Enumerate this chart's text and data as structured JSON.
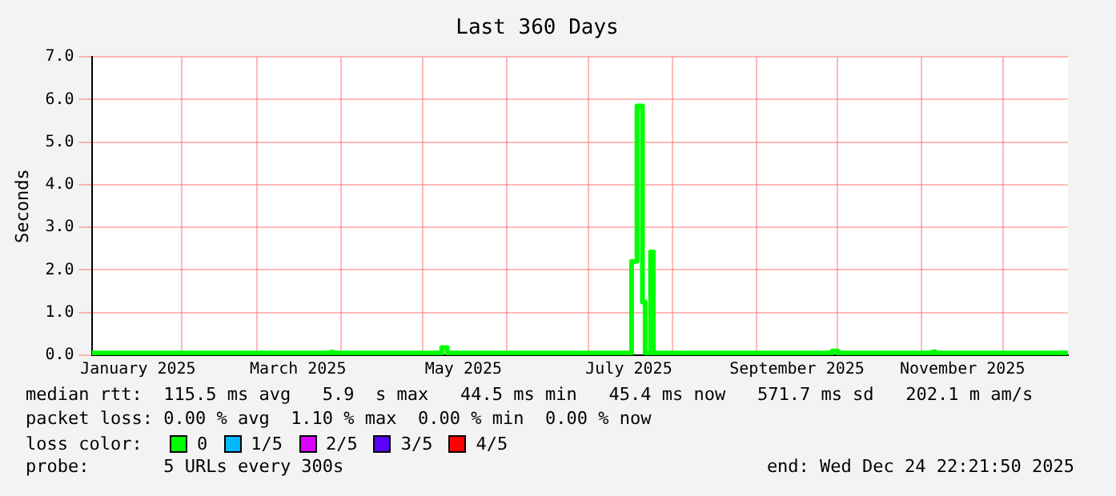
{
  "chart_data": {
    "type": "step",
    "title": "Last 360 Days",
    "ylabel": "Seconds",
    "x": [
      "2024-12-29T22:00",
      "2025-01-20",
      "2025-02-20",
      "2025-03-28",
      "2025-03-29",
      "2025-05-07",
      "2025-05-08",
      "2025-05-10",
      "2025-06-20",
      "2025-07-16",
      "2025-07-17",
      "2025-07-19",
      "2025-07-20",
      "2025-07-21",
      "2025-07-22",
      "2025-07-24",
      "2025-07-25",
      "2025-09-28",
      "2025-09-29",
      "2025-10-01",
      "2025-11-05",
      "2025-11-06",
      "2025-12-24T22:00"
    ],
    "series": [
      {
        "color": "#00ff00",
        "values": [
          0.05,
          0.05,
          0.05,
          0.07,
          0.05,
          0.05,
          0.18,
          0.05,
          0.05,
          0.05,
          2.2,
          5.85,
          5.85,
          1.25,
          0.05,
          2.42,
          0.05,
          0.05,
          0.1,
          0.05,
          0.08,
          0.05,
          0.05
        ]
      }
    ],
    "xlim": [
      "2024-12-29T22:00",
      "2025-12-24T22:00"
    ],
    "xticks": [
      {
        "value": "2025-01-16",
        "label": "January 2025"
      },
      {
        "value": "2025-02-01",
        "label": null
      },
      {
        "value": "2025-03-01",
        "label": null
      },
      {
        "value": "2025-03-16",
        "label": "March 2025"
      },
      {
        "value": "2025-04-01",
        "label": null
      },
      {
        "value": "2025-05-01",
        "label": null
      },
      {
        "value": "2025-05-16",
        "label": "May 2025"
      },
      {
        "value": "2025-06-01",
        "label": null
      },
      {
        "value": "2025-07-01",
        "label": null
      },
      {
        "value": "2025-07-16",
        "label": "July 2025"
      },
      {
        "value": "2025-08-01",
        "label": null
      },
      {
        "value": "2025-09-01",
        "label": null
      },
      {
        "value": "2025-09-16",
        "label": "September 2025"
      },
      {
        "value": "2025-10-01",
        "label": null
      },
      {
        "value": "2025-11-01",
        "label": null
      },
      {
        "value": "2025-11-16",
        "label": "November 2025"
      },
      {
        "value": "2025-12-01",
        "label": null
      }
    ],
    "ylim": [
      0,
      7
    ],
    "yticks": [
      {
        "value": 0,
        "label": "0.0"
      },
      {
        "value": 1,
        "label": "1.0"
      },
      {
        "value": 2,
        "label": "2.0"
      },
      {
        "value": 3,
        "label": "3.0"
      },
      {
        "value": 4,
        "label": "4.0"
      },
      {
        "value": 5,
        "label": "5.0"
      },
      {
        "value": 6,
        "label": "6.0"
      },
      {
        "value": 7,
        "label": "7.0"
      }
    ],
    "grid": true,
    "legend": false,
    "annotations": [
      "median rtt:  115.5 ms avg   5.9  s max   44.5 ms min   45.4 ms now   571.7 ms sd   202.1 m am/s",
      "packet loss: 0.00 % avg  1.10 % max  0.00 % min  0.00 % now",
      "loss color:",
      "0",
      "1/5",
      "2/5",
      "3/5",
      "4/5",
      "probe:       5 URLs every 300s",
      "end: Wed Dec 24 22:21:50 2025"
    ]
  }
}
